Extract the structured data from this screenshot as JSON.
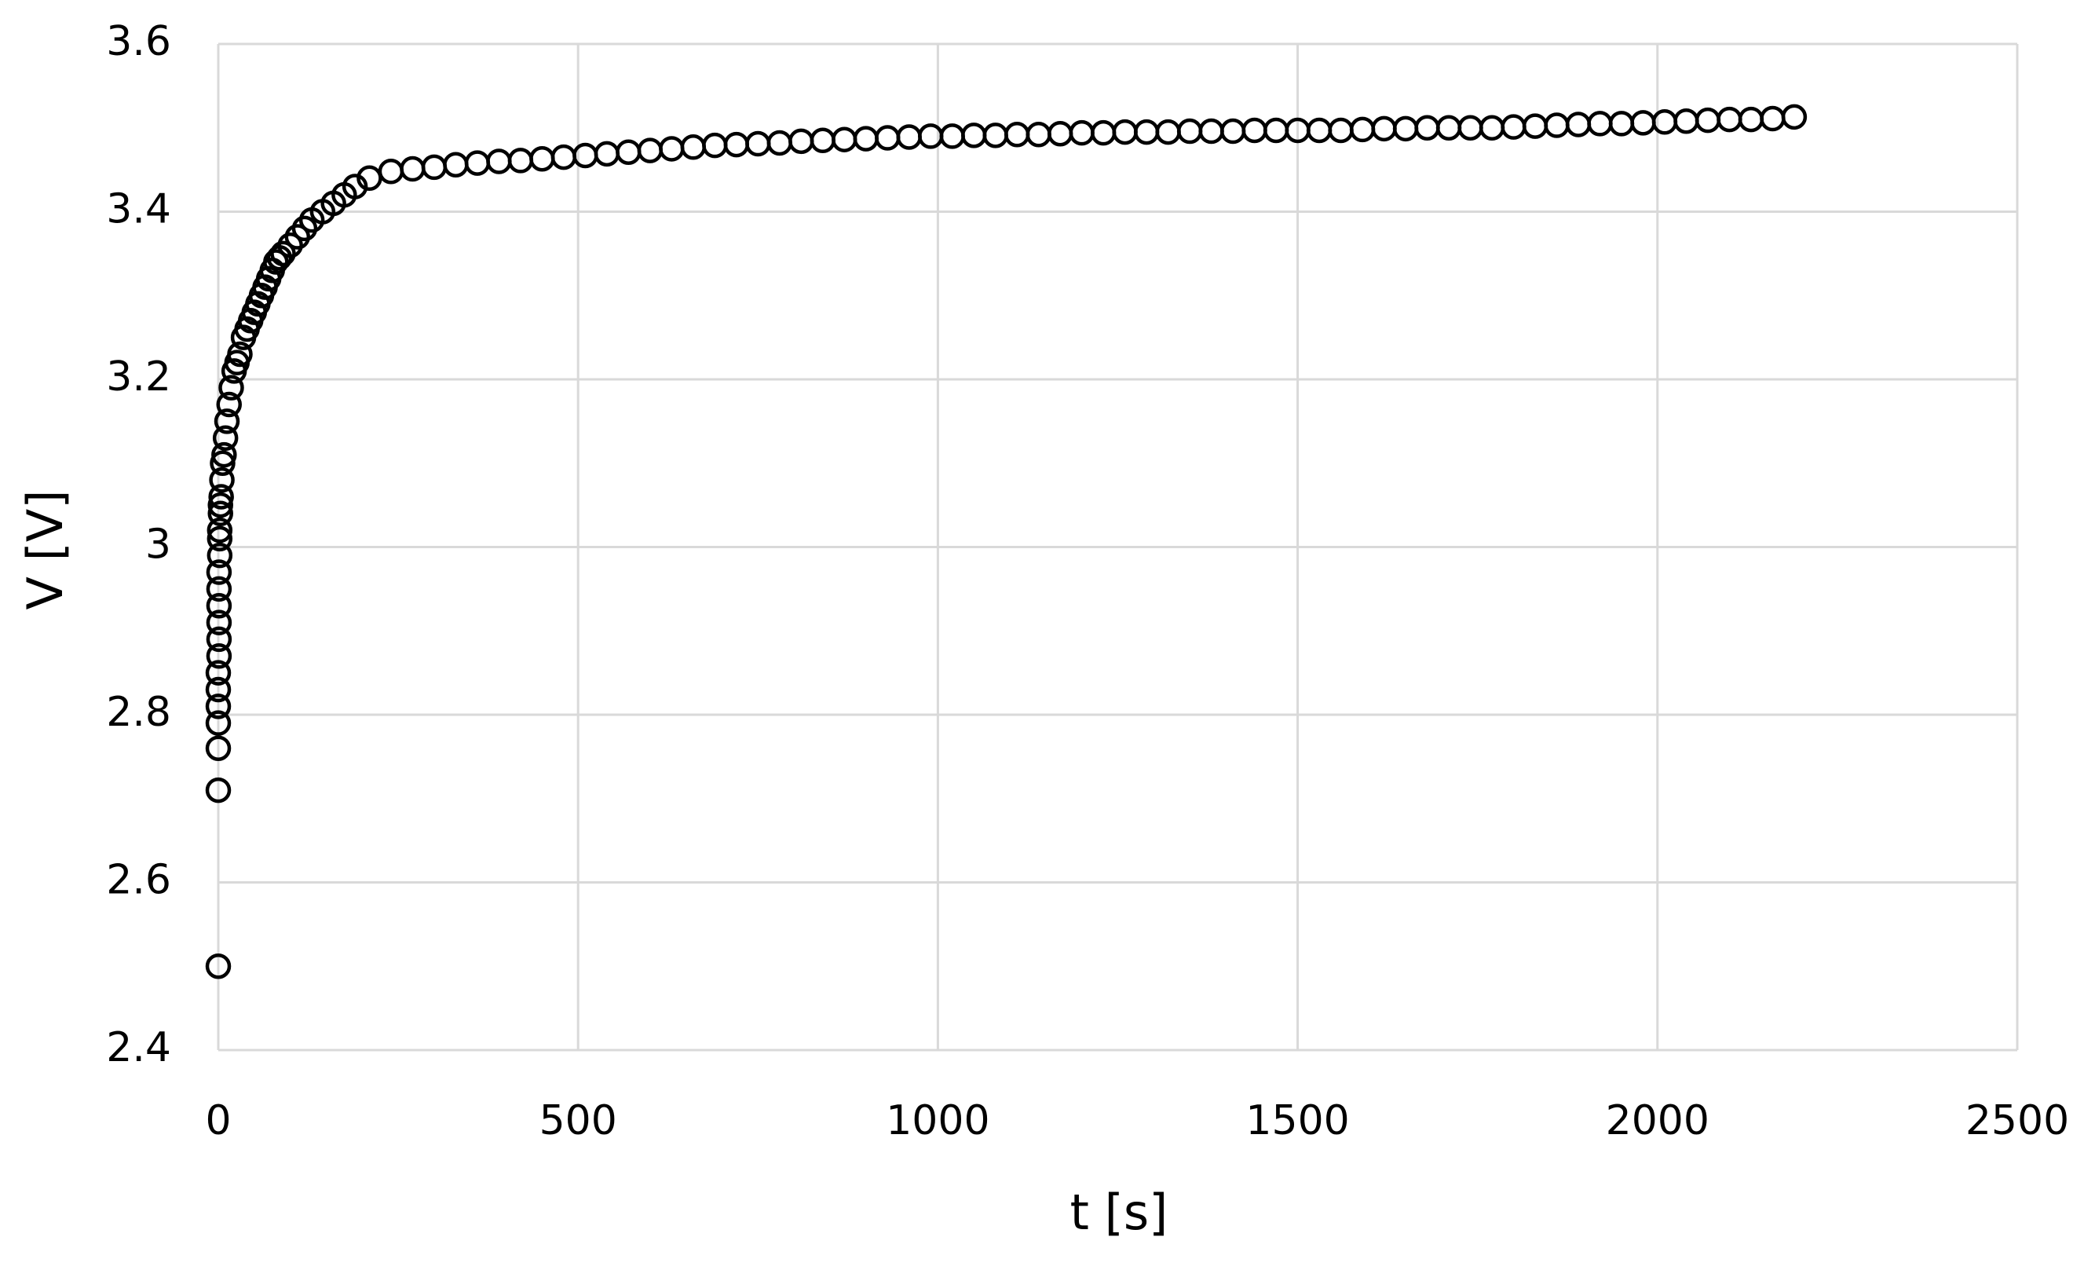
{
  "chart_data": {
    "type": "scatter",
    "x_label": "t [s]",
    "y_label": "V [V]",
    "x": [
      0,
      0,
      0,
      0,
      0,
      0,
      0,
      1,
      1,
      1,
      1,
      1,
      1,
      2,
      2,
      2,
      3,
      3,
      4,
      5,
      6,
      8,
      10,
      12,
      15,
      18,
      22,
      26,
      30,
      35,
      40,
      45,
      50,
      55,
      60,
      65,
      70,
      75,
      80,
      85,
      90,
      100,
      110,
      120,
      130,
      145,
      160,
      175,
      190,
      210,
      240,
      270,
      300,
      330,
      360,
      390,
      420,
      450,
      480,
      510,
      540,
      570,
      600,
      630,
      660,
      690,
      720,
      750,
      780,
      810,
      840,
      870,
      900,
      930,
      960,
      990,
      1020,
      1050,
      1080,
      1110,
      1140,
      1170,
      1200,
      1230,
      1260,
      1290,
      1320,
      1350,
      1380,
      1410,
      1440,
      1470,
      1500,
      1530,
      1560,
      1590,
      1620,
      1650,
      1680,
      1710,
      1740,
      1770,
      1800,
      1830,
      1860,
      1890,
      1920,
      1950,
      1980,
      2010,
      2040,
      2070,
      2100,
      2130,
      2160,
      2190
    ],
    "values": [
      2.5,
      2.71,
      2.76,
      2.79,
      2.81,
      2.83,
      2.85,
      2.87,
      2.89,
      2.91,
      2.93,
      2.95,
      2.97,
      2.99,
      3.01,
      3.02,
      3.04,
      3.05,
      3.06,
      3.08,
      3.1,
      3.11,
      3.13,
      3.15,
      3.17,
      3.19,
      3.21,
      3.22,
      3.23,
      3.25,
      3.26,
      3.27,
      3.28,
      3.29,
      3.3,
      3.31,
      3.32,
      3.33,
      3.34,
      3.345,
      3.35,
      3.36,
      3.37,
      3.38,
      3.39,
      3.4,
      3.41,
      3.42,
      3.43,
      3.44,
      3.448,
      3.451,
      3.453,
      3.456,
      3.458,
      3.46,
      3.461,
      3.463,
      3.465,
      3.467,
      3.469,
      3.471,
      3.473,
      3.475,
      3.477,
      3.479,
      3.48,
      3.481,
      3.482,
      3.484,
      3.485,
      3.486,
      3.487,
      3.488,
      3.489,
      3.49,
      3.49,
      3.491,
      3.491,
      3.492,
      3.492,
      3.493,
      3.494,
      3.494,
      3.495,
      3.495,
      3.495,
      3.496,
      3.496,
      3.496,
      3.497,
      3.497,
      3.497,
      3.497,
      3.497,
      3.498,
      3.499,
      3.499,
      3.5,
      3.5,
      3.5,
      3.5,
      3.501,
      3.502,
      3.503,
      3.504,
      3.505,
      3.505,
      3.506,
      3.507,
      3.508,
      3.509,
      3.51,
      3.51,
      3.511,
      3.513
    ],
    "marker_color": "#000000",
    "xlim": [
      0,
      2500
    ],
    "xticks": [
      0,
      500,
      1000,
      1500,
      2000,
      2500
    ],
    "ylim": [
      2.4,
      3.6
    ],
    "yticks": [
      2.4,
      2.6,
      2.8,
      3,
      3.2,
      3.4,
      3.6
    ],
    "grid": true
  }
}
